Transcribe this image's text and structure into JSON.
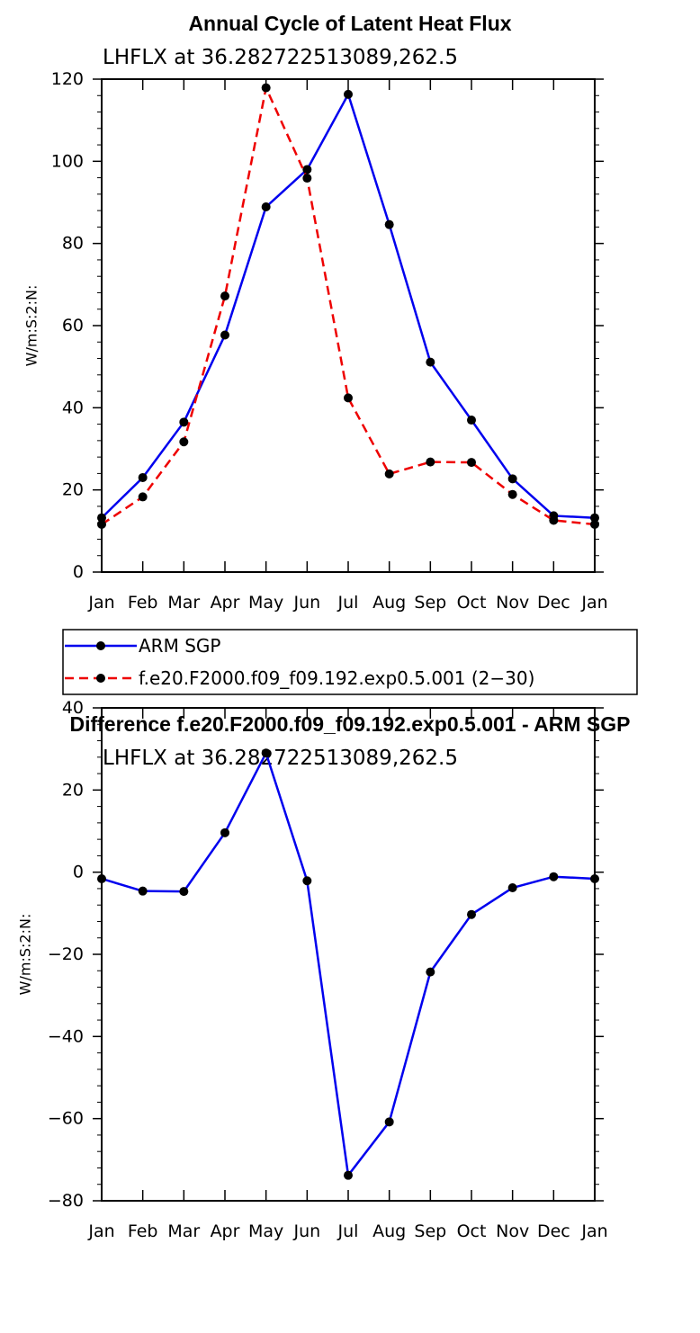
{
  "chart_data": [
    {
      "type": "line",
      "title": "Annual Cycle of Latent Heat Flux",
      "subtitle": "LHFLX at 36.282722513089,262.5",
      "xlabel": "",
      "ylabel": "W/m:S:2:N:",
      "ylim": [
        0,
        120
      ],
      "yticks": [
        "0",
        "20",
        "40",
        "60",
        "80",
        "100",
        "120"
      ],
      "categories": [
        "Jan",
        "Feb",
        "Mar",
        "Apr",
        "May",
        "Jun",
        "Jul",
        "Aug",
        "Sep",
        "Oct",
        "Nov",
        "Dec",
        "Jan"
      ],
      "legend_position": "bottom-left",
      "series": [
        {
          "name": "ARM SGP",
          "color": "#0000ee",
          "style": "solid",
          "values": [
            13.2,
            23.0,
            36.5,
            57.7,
            88.9,
            98.0,
            116.3,
            84.6,
            51.1,
            37.0,
            22.7,
            13.7,
            13.2
          ]
        },
        {
          "name": "f.e20.F2000.f09_f09.192.exp0.5.001 (2−30)",
          "color": "#ee0000",
          "style": "dashed",
          "values": [
            11.6,
            18.3,
            31.7,
            67.2,
            117.9,
            95.9,
            42.4,
            23.9,
            26.8,
            26.7,
            18.9,
            12.6,
            11.6
          ]
        }
      ]
    },
    {
      "type": "line",
      "title": "Difference f.e20.F2000.f09_f09.192.exp0.5.001 - ARM SGP",
      "subtitle": "LHFLX at 36.282722513089,262.5",
      "xlabel": "",
      "ylabel": "W/m:S:2:N:",
      "ylim": [
        -80,
        40
      ],
      "yticks": [
        "−80",
        "−60",
        "−40",
        "−20",
        "0",
        "20",
        "40"
      ],
      "categories": [
        "Jan",
        "Feb",
        "Mar",
        "Apr",
        "May",
        "Jun",
        "Jul",
        "Aug",
        "Sep",
        "Oct",
        "Nov",
        "Dec",
        "Jan"
      ],
      "series": [
        {
          "name": "Difference",
          "color": "#0000ee",
          "style": "solid",
          "values": [
            -1.6,
            -4.6,
            -4.7,
            9.6,
            29.0,
            -2.1,
            -73.8,
            -60.8,
            -24.3,
            -10.3,
            -3.8,
            -1.1,
            -1.6
          ]
        }
      ]
    }
  ]
}
